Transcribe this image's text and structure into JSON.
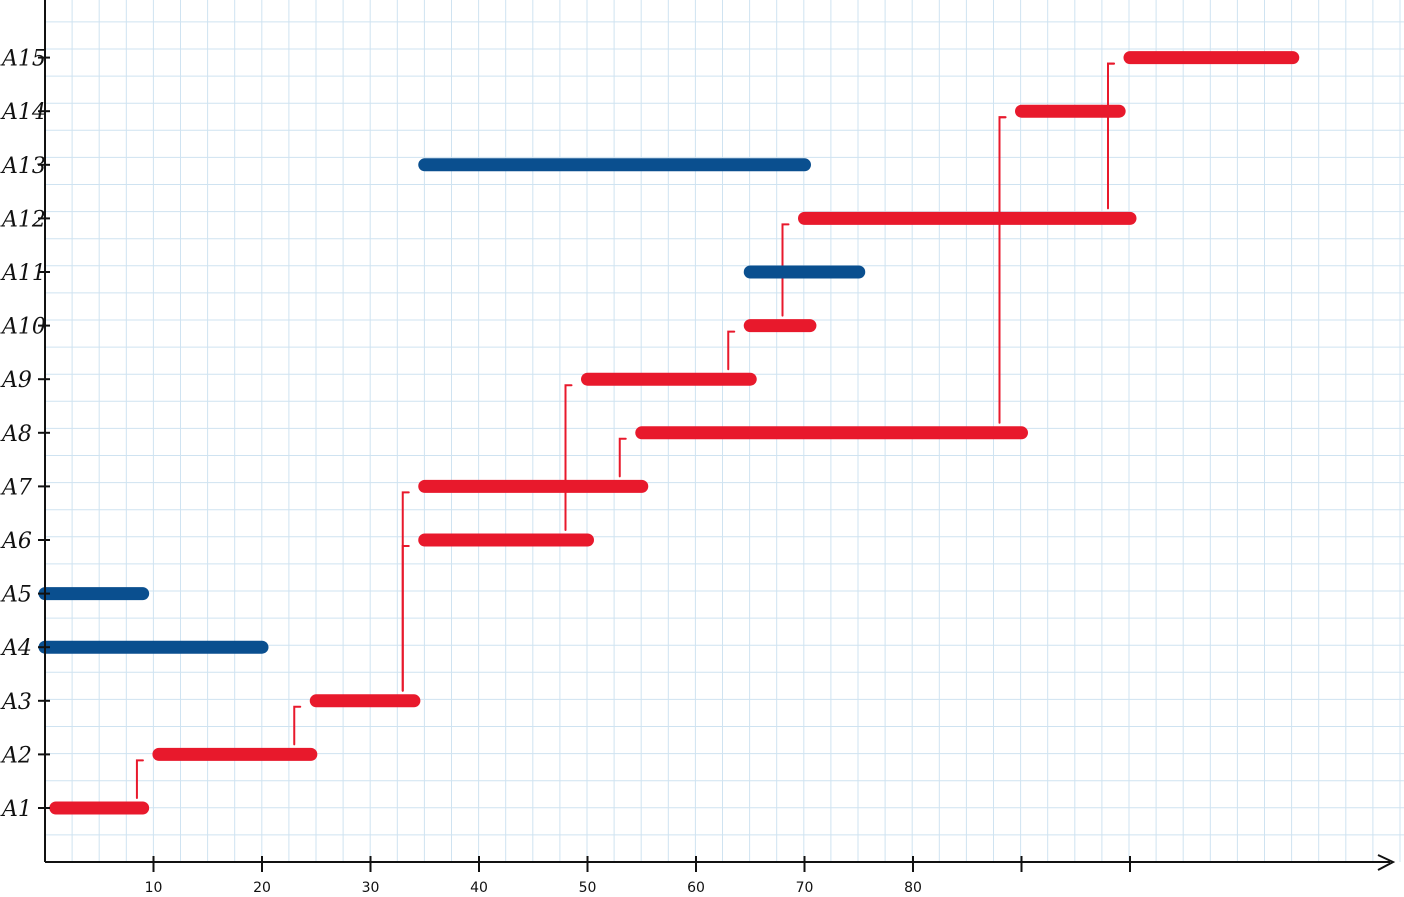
{
  "chart_data": {
    "type": "gantt",
    "title": "",
    "xlabel": "",
    "ylabel": "",
    "grid": true,
    "colors": {
      "grid": "#cfe3f1",
      "axis": "#111111",
      "critical": "#e8192c",
      "non_critical": "#0a4f8f"
    },
    "x_ticks": [
      {
        "value": 10,
        "label": "10"
      },
      {
        "value": 20,
        "label": "20"
      },
      {
        "value": 30,
        "label": "30"
      },
      {
        "value": 40,
        "label": "40"
      },
      {
        "value": 50,
        "label": "50"
      },
      {
        "value": 60,
        "label": "60"
      },
      {
        "value": 70,
        "label": "70"
      },
      {
        "value": 80,
        "label": "80"
      },
      {
        "value": 90,
        "label": ""
      },
      {
        "value": 100,
        "label": ""
      }
    ],
    "y_categories": [
      "A1",
      "A2",
      "A3",
      "A4",
      "A5",
      "A6",
      "A7",
      "A8",
      "A9",
      "A10",
      "A11",
      "A12",
      "A13",
      "A14",
      "A15"
    ],
    "tasks": [
      {
        "name": "A1",
        "start": 1,
        "end": 9,
        "critical": true
      },
      {
        "name": "A2",
        "start": 10.5,
        "end": 24.5,
        "critical": true
      },
      {
        "name": "A3",
        "start": 25,
        "end": 34,
        "critical": true
      },
      {
        "name": "A4",
        "start": 0,
        "end": 20,
        "critical": false
      },
      {
        "name": "A5",
        "start": 0,
        "end": 9,
        "critical": false
      },
      {
        "name": "A6",
        "start": 35,
        "end": 50,
        "critical": true
      },
      {
        "name": "A7",
        "start": 35,
        "end": 55,
        "critical": true
      },
      {
        "name": "A8",
        "start": 55,
        "end": 90,
        "critical": true
      },
      {
        "name": "A9",
        "start": 50,
        "end": 65,
        "critical": true
      },
      {
        "name": "A10",
        "start": 65,
        "end": 70.5,
        "critical": true
      },
      {
        "name": "A11",
        "start": 65,
        "end": 75,
        "critical": false
      },
      {
        "name": "A12",
        "start": 70,
        "end": 100,
        "critical": true
      },
      {
        "name": "A13",
        "start": 35,
        "end": 70,
        "critical": false
      },
      {
        "name": "A14",
        "start": 90,
        "end": 99,
        "critical": true
      },
      {
        "name": "A15",
        "start": 100,
        "end": 115,
        "critical": true
      }
    ],
    "links": [
      {
        "from": "A1",
        "to": "A2"
      },
      {
        "from": "A2",
        "to": "A3"
      },
      {
        "from": "A3",
        "to": "A6"
      },
      {
        "from": "A3",
        "to": "A7"
      },
      {
        "from": "A6",
        "to": "A9"
      },
      {
        "from": "A7",
        "to": "A8"
      },
      {
        "from": "A9",
        "to": "A10"
      },
      {
        "from": "A10",
        "to": "A12"
      },
      {
        "from": "A8",
        "to": "A14"
      },
      {
        "from": "A12",
        "to": "A14"
      },
      {
        "from": "A14",
        "to": "A15"
      },
      {
        "from": "A12",
        "to": "A15"
      }
    ]
  }
}
